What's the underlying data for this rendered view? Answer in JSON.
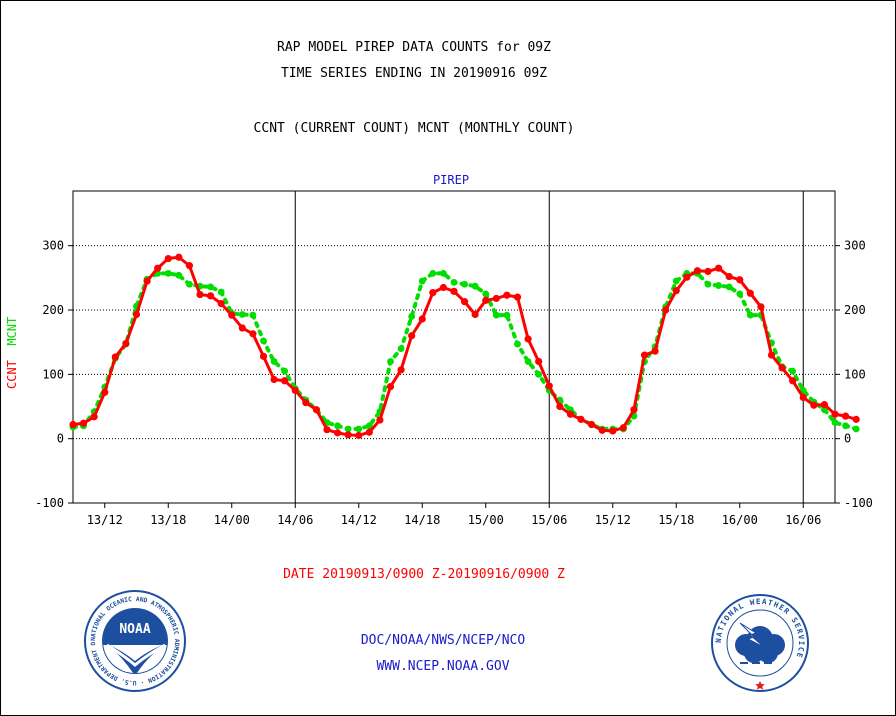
{
  "titles": {
    "line1": "RAP MODEL PIREP DATA COUNTS for 09Z",
    "line2": "TIME SERIES ENDING IN 20190916 09Z",
    "line3": "CCNT (CURRENT COUNT) MCNT (MONTHLY COUNT)"
  },
  "panel_label": "PIREP",
  "date_range": "DATE 20190913/0900 Z-20190916/0900 Z",
  "credits": {
    "line1": "DOC/NOAA/NWS/NCEP/NCO",
    "line2": "WWW.NCEP.NOAA.GOV"
  },
  "logos": {
    "noaa_text": "NOAA",
    "noaa_ring": "NATIONAL OCEANIC AND ATMOSPHERIC ADMINISTRATION · U.S. DEPARTMENT OF COMMERCE",
    "nws_ring": "NATIONAL WEATHER SERVICE"
  },
  "colors": {
    "ccnt": "#ff0000",
    "mcnt": "#00dd00",
    "title_text": "#000000",
    "panel_label": "#1a1acc",
    "credits": "#1a1acc"
  },
  "chart_data": {
    "type": "line",
    "title": "RAP MODEL PIREP DATA COUNTS for 09Z",
    "subtitle": "TIME SERIES ENDING IN 20190916 09Z",
    "ylabel_parts": [
      "CCNT",
      "MCNT"
    ],
    "xlabel": "DATE 20190913/0900 Z-20190916/0900 Z",
    "x_unit": "hours since 2019-09-13 09Z",
    "x_ticks": [
      {
        "x": 3,
        "label": "13/12"
      },
      {
        "x": 9,
        "label": "13/18"
      },
      {
        "x": 15,
        "label": "14/00"
      },
      {
        "x": 21,
        "label": "14/06"
      },
      {
        "x": 27,
        "label": "14/12"
      },
      {
        "x": 33,
        "label": "14/18"
      },
      {
        "x": 39,
        "label": "15/00"
      },
      {
        "x": 45,
        "label": "15/06"
      },
      {
        "x": 51,
        "label": "15/12"
      },
      {
        "x": 57,
        "label": "15/18"
      },
      {
        "x": 63,
        "label": "16/00"
      },
      {
        "x": 69,
        "label": "16/06"
      }
    ],
    "day_boundaries": [
      21,
      45,
      69
    ],
    "xlim": [
      0,
      72
    ],
    "ylim": [
      -100,
      385
    ],
    "y_ticks": [
      -100,
      0,
      100,
      200,
      300
    ],
    "grid": "horizontal dotted at 0, 100, 200, 300",
    "series": [
      {
        "name": "CCNT",
        "values": [
          22,
          24,
          34,
          72,
          127,
          148,
          193,
          245,
          265,
          280,
          282,
          269,
          224,
          222,
          210,
          192,
          172,
          163,
          128,
          92,
          90,
          75,
          56,
          45,
          14,
          9,
          6,
          5,
          10,
          29,
          81,
          107,
          160,
          186,
          227,
          235,
          229,
          213,
          193,
          215,
          218,
          223,
          220,
          155,
          120,
          82,
          50,
          38,
          30,
          22,
          13,
          12,
          17,
          45,
          130,
          136,
          200,
          230,
          251,
          261,
          260,
          265,
          252,
          247,
          226,
          205,
          130,
          110,
          90,
          64,
          52,
          53,
          38,
          35,
          30
        ]
      },
      {
        "name": "MCNT",
        "values": [
          18,
          20,
          42,
          80,
          125,
          147,
          206,
          248,
          257,
          257,
          254,
          240,
          237,
          236,
          228,
          195,
          193,
          192,
          152,
          120,
          105,
          78,
          60,
          45,
          25,
          20,
          15,
          15,
          20,
          42,
          120,
          140,
          190,
          245,
          257,
          257,
          243,
          240,
          237,
          225,
          192,
          192,
          147,
          120,
          100,
          75,
          60,
          45,
          30,
          22,
          15,
          15,
          15,
          35,
          120,
          143,
          205,
          245,
          257,
          257,
          240,
          238,
          236,
          225,
          192,
          192,
          149,
          112,
          105,
          75,
          57,
          45,
          25,
          20,
          15
        ]
      }
    ]
  }
}
